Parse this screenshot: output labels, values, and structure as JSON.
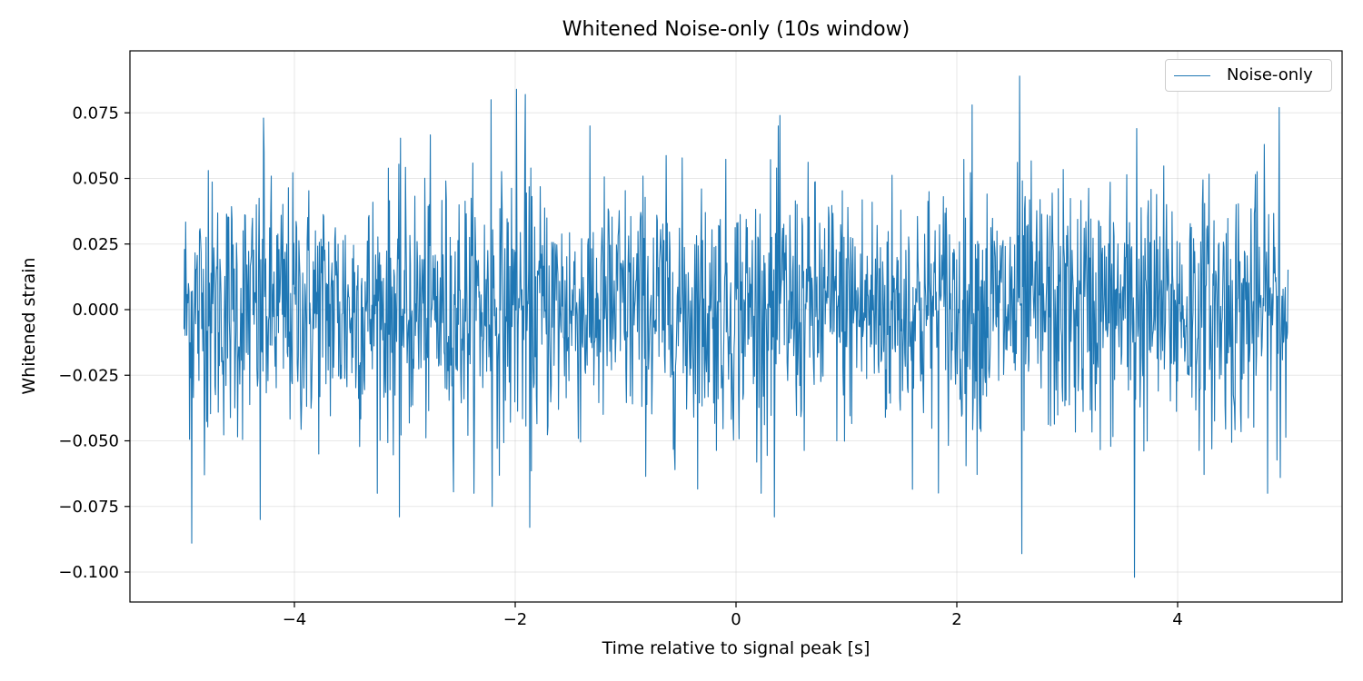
{
  "chart_data": {
    "type": "line",
    "title": "Whitened Noise-only (10s window)",
    "xlabel": "Time relative to signal peak [s]",
    "ylabel": "Whitened strain",
    "xlim": [
      -5.0,
      5.0
    ],
    "ylim": [
      -0.1,
      0.075
    ],
    "xticks": [
      -4,
      -2,
      0,
      2,
      4
    ],
    "xtick_labels": [
      "−4",
      "−2",
      "0",
      "2",
      "4"
    ],
    "yticks": [
      -0.1,
      -0.075,
      -0.05,
      -0.025,
      0.0,
      0.025,
      0.05,
      0.075
    ],
    "ytick_labels": [
      "−0.100",
      "−0.075",
      "−0.050",
      "−0.025",
      "0.000",
      "0.025",
      "0.050",
      "0.075"
    ],
    "grid": true,
    "legend": {
      "placement": "top-right",
      "entries": [
        "Noise-only"
      ]
    },
    "series": [
      {
        "name": "Noise-only",
        "color": "#1f77b4",
        "t_start": -5.0,
        "t_end": 5.0,
        "noise_std": 0.024,
        "peaks": [
          {
            "t": -4.93,
            "v": -0.089
          },
          {
            "t": -4.78,
            "v": 0.053
          },
          {
            "t": -4.31,
            "v": -0.08
          },
          {
            "t": -4.28,
            "v": 0.073
          },
          {
            "t": -3.05,
            "v": -0.079
          },
          {
            "t": -2.22,
            "v": 0.08
          },
          {
            "t": -2.22,
            "v": -0.075
          },
          {
            "t": -1.99,
            "v": 0.084
          },
          {
            "t": -1.91,
            "v": 0.082
          },
          {
            "t": -1.87,
            "v": -0.083
          },
          {
            "t": 0.35,
            "v": -0.079
          },
          {
            "t": 0.4,
            "v": 0.074
          },
          {
            "t": 2.14,
            "v": 0.078
          },
          {
            "t": 2.57,
            "v": 0.089
          },
          {
            "t": 2.59,
            "v": -0.093
          },
          {
            "t": 3.61,
            "v": -0.102
          },
          {
            "t": 3.63,
            "v": 0.069
          },
          {
            "t": 4.92,
            "v": 0.077
          },
          {
            "t": 4.93,
            "v": -0.064
          }
        ]
      }
    ]
  }
}
